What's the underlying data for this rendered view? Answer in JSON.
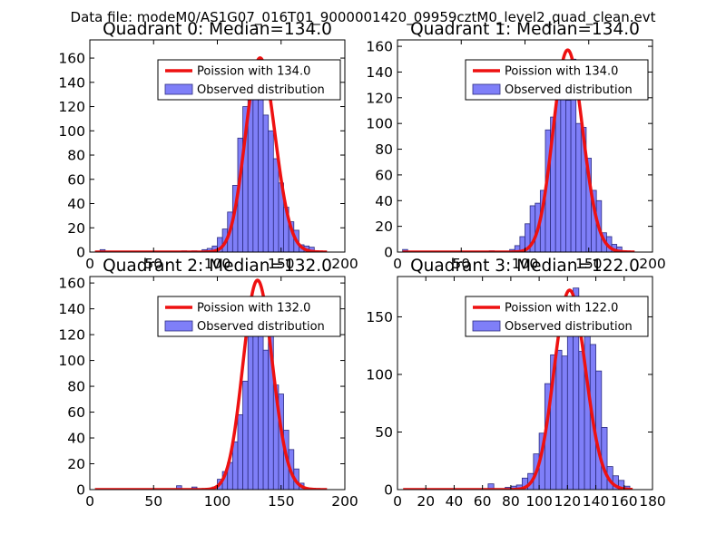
{
  "figure_title": "Data file: modeM0/AS1G07_016T01_9000001420_09959cztM0_level2_quad_clean.evt",
  "colors": {
    "bar_fill": "#7f7ff8",
    "bar_edge": "#2c2c80",
    "fit_line": "#ee1111"
  },
  "chart_data": [
    {
      "type": "bar",
      "title": "Quadrant 0: Median=134.0",
      "xlim": [
        0,
        200
      ],
      "xticks": [
        0,
        50,
        100,
        150,
        200
      ],
      "ylim": [
        0,
        175
      ],
      "yticks": [
        0,
        20,
        40,
        60,
        80,
        100,
        120,
        140,
        160
      ],
      "bin_width": 4,
      "bin_starts": [
        8,
        72,
        80,
        88,
        92,
        96,
        100,
        104,
        108,
        112,
        116,
        120,
        124,
        128,
        132,
        136,
        140,
        144,
        148,
        152,
        156,
        160,
        164,
        168,
        172,
        176
      ],
      "values": [
        2,
        1,
        1,
        2,
        3,
        5,
        12,
        19,
        33,
        55,
        94,
        120,
        145,
        142,
        157,
        113,
        100,
        77,
        57,
        37,
        25,
        18,
        6,
        5,
        4,
        1
      ],
      "fit": {
        "mean": 134.0,
        "scale": 160
      },
      "legend": [
        "Poission with 134.0",
        "Observed distribution"
      ]
    },
    {
      "type": "bar",
      "title": "Quadrant 1: Median=134.0",
      "xlim": [
        0,
        200
      ],
      "xticks": [
        0,
        50,
        100,
        150,
        200
      ],
      "ylim": [
        0,
        165
      ],
      "yticks": [
        0,
        20,
        40,
        60,
        80,
        100,
        120,
        140,
        160
      ],
      "bin_width": 4,
      "bin_starts": [
        4,
        72,
        88,
        92,
        96,
        100,
        104,
        108,
        112,
        116,
        120,
        124,
        128,
        132,
        136,
        140,
        144,
        148,
        152,
        156,
        160,
        164,
        168,
        172,
        176
      ],
      "values": [
        2,
        1,
        2,
        5,
        12,
        22,
        36,
        38,
        48,
        95,
        105,
        132,
        137,
        118,
        150,
        100,
        97,
        73,
        48,
        40,
        15,
        12,
        6,
        4,
        1
      ],
      "fit": {
        "mean": 134.0,
        "scale": 157
      },
      "legend": [
        "Poission with 134.0",
        "Observed distribution"
      ]
    },
    {
      "type": "bar",
      "title": "Quadrant 2: Median=132.0",
      "xlim": [
        0,
        200
      ],
      "xticks": [
        0,
        50,
        100,
        150,
        200
      ],
      "ylim": [
        0,
        165
      ],
      "yticks": [
        0,
        20,
        40,
        60,
        80,
        100,
        120,
        140,
        160
      ],
      "bin_width": 4,
      "bin_starts": [
        68,
        80,
        96,
        100,
        104,
        108,
        112,
        116,
        120,
        124,
        128,
        132,
        136,
        140,
        144,
        148,
        152,
        156,
        160,
        164,
        168
      ],
      "values": [
        3,
        2,
        2,
        8,
        14,
        21,
        37,
        58,
        84,
        127,
        127,
        143,
        108,
        128,
        81,
        74,
        46,
        31,
        16,
        5,
        1
      ],
      "fit": {
        "mean": 132.0,
        "scale": 162
      },
      "legend": [
        "Poission with 132.0",
        "Observed distribution"
      ]
    },
    {
      "type": "bar",
      "title": "Quadrant 3: Median=122.0",
      "xlim": [
        0,
        180
      ],
      "xticks": [
        0,
        20,
        40,
        60,
        80,
        100,
        120,
        140,
        160,
        180
      ],
      "ylim": [
        0,
        185
      ],
      "yticks": [
        0,
        50,
        100,
        150
      ],
      "bin_width": 4,
      "bin_starts": [
        64,
        76,
        80,
        84,
        88,
        92,
        96,
        100,
        104,
        108,
        112,
        116,
        120,
        124,
        128,
        132,
        136,
        140,
        144,
        148,
        152,
        156,
        160
      ],
      "values": [
        5,
        2,
        3,
        4,
        10,
        14,
        31,
        49,
        92,
        117,
        121,
        116,
        154,
        175,
        120,
        153,
        126,
        103,
        54,
        20,
        12,
        8,
        3
      ],
      "fit": {
        "mean": 122.0,
        "scale": 173
      },
      "legend": [
        "Poission with 122.0",
        "Observed distribution"
      ]
    }
  ]
}
